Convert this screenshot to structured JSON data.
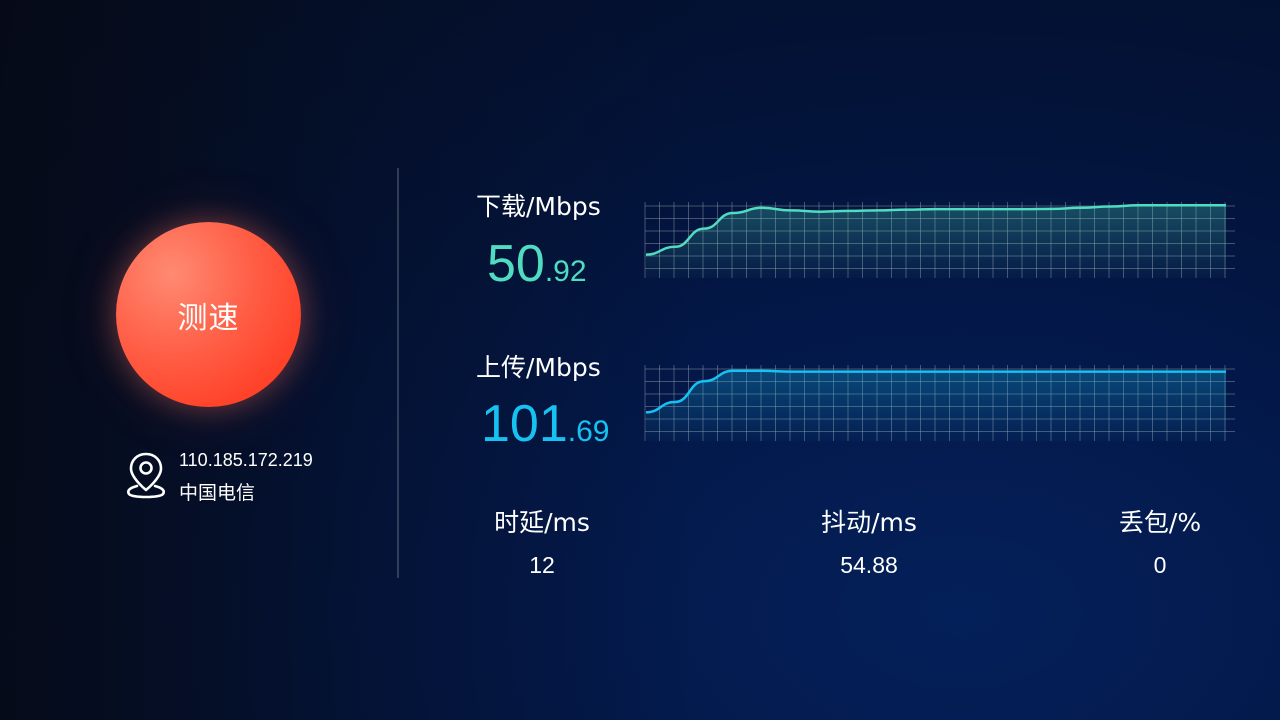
{
  "speed_test": {
    "button_label": "测速"
  },
  "location": {
    "ip": "110.185.172.219",
    "isp": "中国电信",
    "icon": "location-pin-icon"
  },
  "download": {
    "label": "下载/Mbps",
    "value_int": "50",
    "value_dec": ".92",
    "color": "#4fdcc0",
    "chart_data": {
      "type": "area",
      "x": [
        0,
        1,
        2,
        3,
        4,
        5,
        6,
        7,
        8,
        9,
        10,
        11,
        12,
        13,
        14,
        15,
        16,
        17,
        18,
        19,
        20
      ],
      "values": [
        44,
        47,
        54,
        60,
        62,
        61,
        60.5,
        60.8,
        61,
        61.3,
        61.5,
        61.5,
        61.5,
        61.5,
        61.6,
        62,
        62.5,
        63,
        63,
        63,
        63
      ],
      "ylim": [
        35,
        70
      ],
      "grid": true
    }
  },
  "upload": {
    "label": "上传/Mbps",
    "value_int": "101",
    "value_dec": ".69",
    "color": "#16c2f2",
    "chart_data": {
      "type": "area",
      "x": [
        0,
        1,
        2,
        3,
        4,
        5,
        6,
        7,
        8,
        9,
        10,
        11,
        12,
        13,
        14,
        15,
        16,
        17,
        18,
        19,
        20
      ],
      "values": [
        86,
        90,
        98,
        102,
        102,
        101.7,
        101.7,
        101.7,
        101.7,
        101.7,
        101.7,
        101.7,
        101.7,
        101.7,
        101.7,
        101.7,
        101.7,
        101.7,
        101.7,
        101.7,
        101.7
      ],
      "ylim": [
        75,
        110
      ],
      "grid": true
    }
  },
  "stats": [
    {
      "label": "时延/ms",
      "value": "12"
    },
    {
      "label": "抖动/ms",
      "value": "54.88"
    },
    {
      "label": "丢包/%",
      "value": "0"
    }
  ]
}
